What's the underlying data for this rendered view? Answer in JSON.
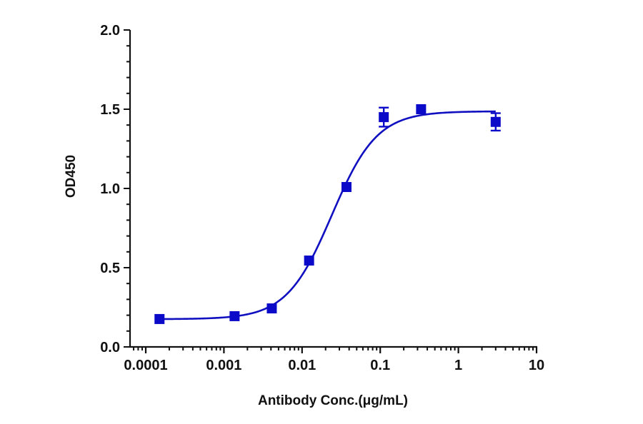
{
  "chart_data": {
    "type": "scatter",
    "title": "",
    "xlabel": "Antibody Conc.(μg/mL)",
    "ylabel": "OD450",
    "xscale": "log",
    "xlim": [
      0.0001,
      10
    ],
    "ylim": [
      0,
      2.0
    ],
    "x_ticks": [
      0.0001,
      0.001,
      0.01,
      0.1,
      1,
      10
    ],
    "x_tick_labels": [
      "0.0001",
      "0.001",
      "0.01",
      "0.1",
      "1",
      "10"
    ],
    "y_ticks": [
      0.0,
      0.5,
      1.0,
      1.5,
      2.0
    ],
    "y_tick_labels": [
      "0.0",
      "0.5",
      "1.0",
      "1.5",
      "2.0"
    ],
    "grid": false,
    "legend": null,
    "series": [
      {
        "name": "OD450",
        "marker": "square",
        "color": "#0a0ac8",
        "x": [
          0.00015,
          0.00137,
          0.0041,
          0.0123,
          0.037,
          0.111,
          0.333,
          3.0
        ],
        "y": [
          0.176,
          0.194,
          0.243,
          0.545,
          1.009,
          1.45,
          1.5,
          1.42
        ],
        "error": [
          0.0,
          0.0,
          0.0,
          0.0,
          0.0,
          0.06,
          0.0,
          0.055
        ]
      }
    ],
    "fit": {
      "model": "4PL",
      "bottom": 0.175,
      "top": 1.487,
      "ec50": 0.024,
      "hill": 1.5,
      "color": "#1010c0",
      "x_range": [
        0.00015,
        3.0
      ]
    }
  }
}
